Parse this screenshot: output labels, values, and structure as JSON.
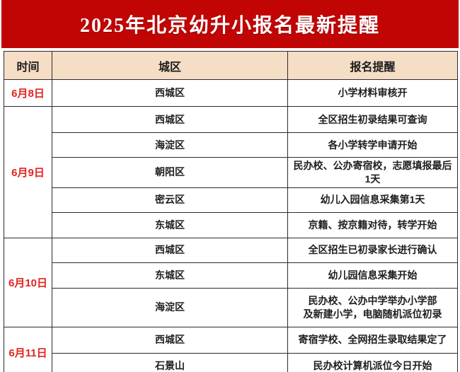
{
  "title": "2025年北京幼升小报名最新提醒",
  "colors": {
    "banner_red": "#c10404",
    "date_red": "#e02420",
    "header_beige": "#f6ddc6",
    "border_dark": "#2b2b2b",
    "title_white": "#ffffff"
  },
  "table": {
    "headers": [
      "时间",
      "城区",
      "报名提醒"
    ],
    "groups": [
      {
        "date": "6月8日",
        "rows": [
          {
            "district": "西城区",
            "reminder": "小学材料审核开"
          }
        ]
      },
      {
        "date": "6月9日",
        "rows": [
          {
            "district": "西城区",
            "reminder": "全区招生初录结果可查询"
          },
          {
            "district": "海淀区",
            "reminder": "各小学转学申请开始"
          },
          {
            "district": "朝阳区",
            "reminder": "民办校、公办寄宿校，志愿填报最后1天"
          },
          {
            "district": "密云区",
            "reminder": "幼儿入园信息采集第1天"
          },
          {
            "district": "东城区",
            "reminder": "京籍、按京籍对待，转学开始"
          }
        ]
      },
      {
        "date": "6月10日",
        "rows": [
          {
            "district": "西城区",
            "reminder": "全区招生已初录家长进行确认"
          },
          {
            "district": "东城区",
            "reminder": "幼儿园信息采集开始"
          },
          {
            "district": "海淀区",
            "reminder": "民办校、公办中学举办小学部\n及新建小学，电脑随机派位初录"
          }
        ]
      },
      {
        "date": "6月11日",
        "rows": [
          {
            "district": "西城区",
            "reminder": "寄宿学校、全网招生录取结果定了"
          },
          {
            "district": "石景山",
            "reminder": "民办校计算机派位今日开始"
          }
        ]
      }
    ]
  }
}
